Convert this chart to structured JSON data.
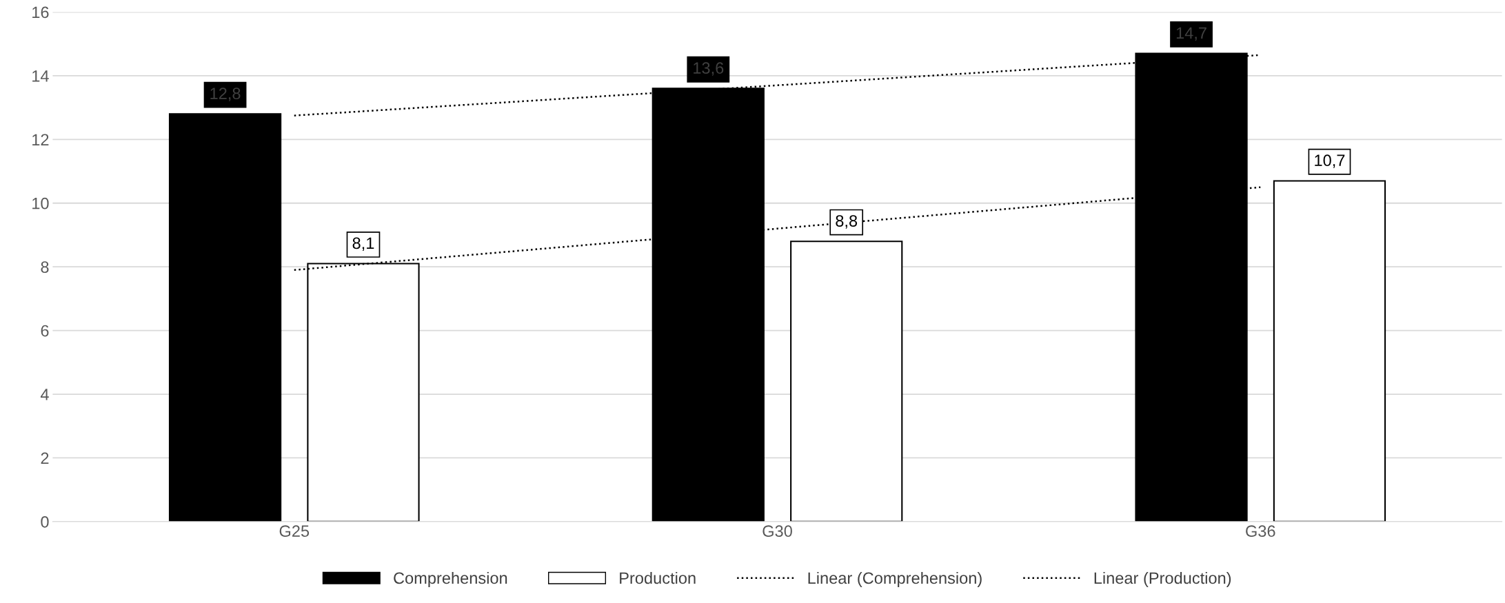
{
  "chart_data": {
    "type": "bar",
    "categories": [
      "G25",
      "G30",
      "G36"
    ],
    "series": [
      {
        "name": "Comprehension",
        "color": "#000000",
        "values": [
          12.8,
          13.6,
          14.7
        ],
        "value_labels": [
          "12,8",
          "13,6",
          "14,7"
        ]
      },
      {
        "name": "Production",
        "color": "#ffffff",
        "values": [
          8.1,
          8.8,
          10.7
        ],
        "value_labels": [
          "8,1",
          "8,8",
          "10,7"
        ]
      },
      {
        "name": "Linear (Comprehension)",
        "type": "line",
        "line_style": "dotted",
        "color": "#000000",
        "x": [
          "G25",
          "G30",
          "G36"
        ],
        "values": [
          12.75,
          13.7,
          14.65
        ]
      },
      {
        "name": "Linear (Production)",
        "type": "line",
        "line_style": "dotted",
        "color": "#000000",
        "x": [
          "G25",
          "G30",
          "G36"
        ],
        "values": [
          7.9,
          9.2,
          10.5
        ]
      }
    ],
    "ylim": [
      0,
      16
    ],
    "yticks": [
      0,
      2,
      4,
      6,
      8,
      10,
      12,
      14,
      16
    ],
    "grid": "y",
    "legend": "bottom"
  }
}
